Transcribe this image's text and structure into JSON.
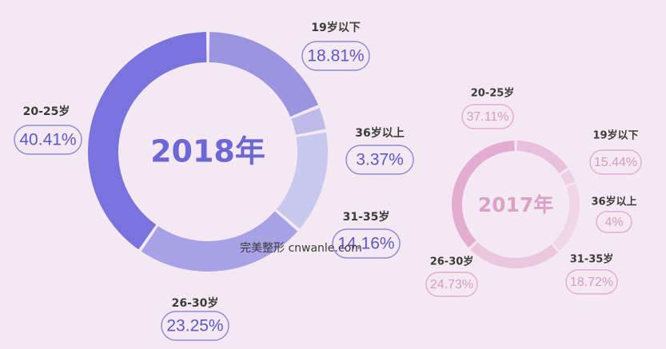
{
  "chart_data": [
    {
      "type": "pie",
      "title": "2018年",
      "categories": [
        "19岁以下",
        "36岁以上",
        "31-35岁",
        "26-30岁",
        "20-25岁"
      ],
      "values": [
        18.81,
        3.37,
        14.16,
        23.25,
        40.41
      ],
      "labels": [
        "18.81%",
        "3.37%",
        "14.16%",
        "23.25%",
        "40.41%"
      ],
      "colors": [
        "#9b95e0",
        "#bebbe8",
        "#c9c8ee",
        "#a7a2e6",
        "#7873dd"
      ]
    },
    {
      "type": "pie",
      "title": "2017年",
      "categories": [
        "19岁以下",
        "36岁以上",
        "31-35岁",
        "26-30岁",
        "20-25岁"
      ],
      "values": [
        15.44,
        4,
        18.72,
        24.73,
        37.11
      ],
      "labels": [
        "15.44%",
        "4%",
        "18.72%",
        "24.73%",
        "37.11%"
      ],
      "colors": [
        "#e8bfdc",
        "#eed0e6",
        "#f0d6e9",
        "#eac7df",
        "#e3acd1"
      ]
    }
  ],
  "watermark": "完美整形 cnwanle.com"
}
